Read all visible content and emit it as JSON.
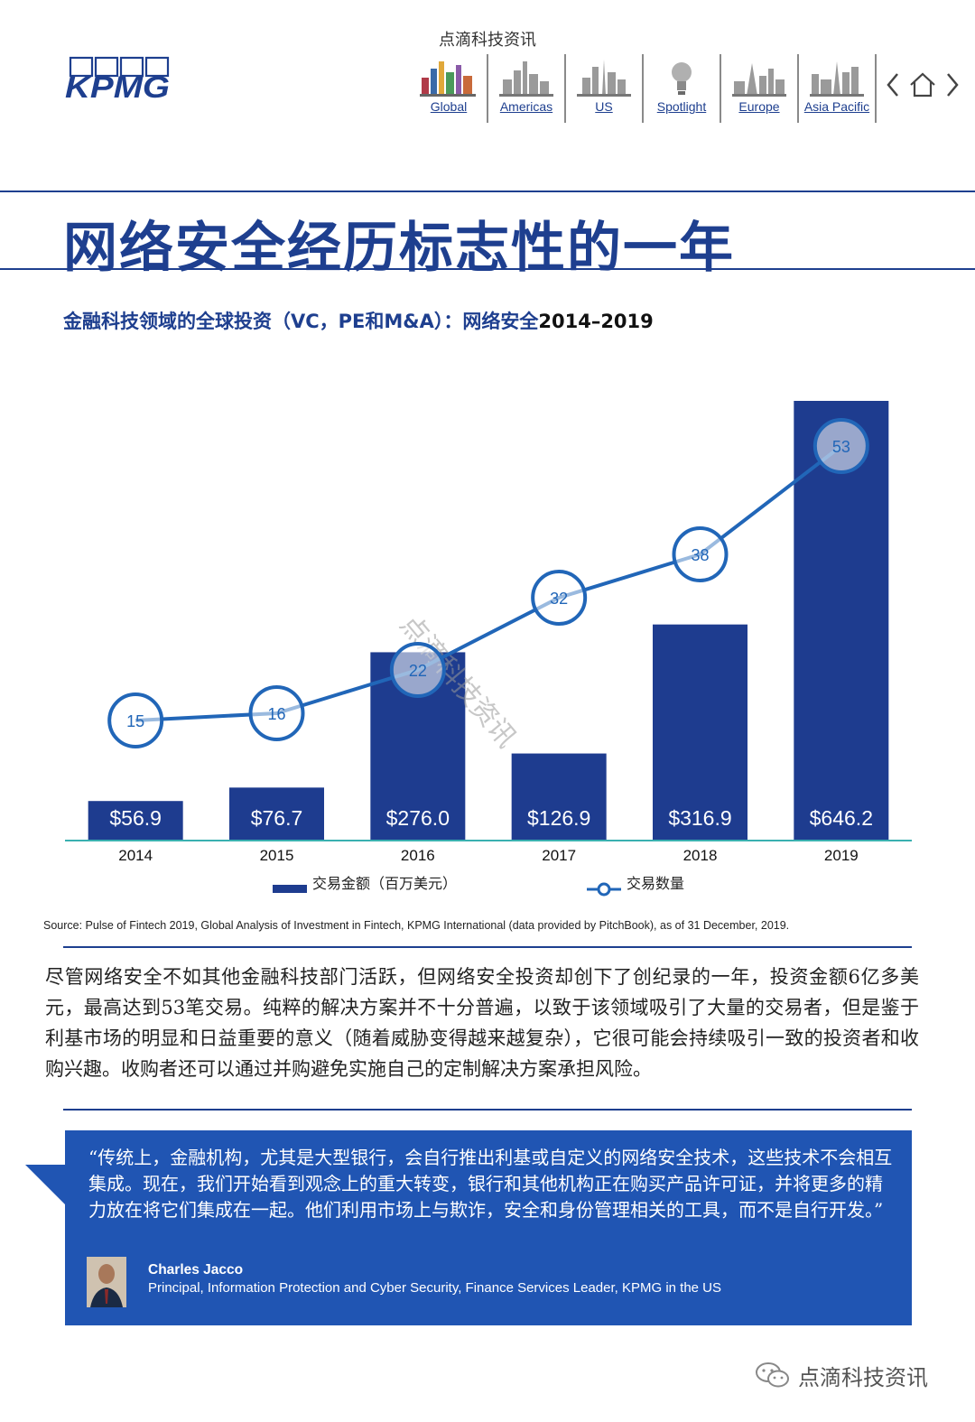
{
  "header": {
    "watermark": "点滴科技资讯",
    "logo_text": "KPMG",
    "nav": [
      {
        "label": "Global",
        "icon": "global-skyline-icon"
      },
      {
        "label": "Americas",
        "icon": "americas-skyline-icon"
      },
      {
        "label": "US",
        "icon": "us-skyline-icon"
      },
      {
        "label": "Spotlight",
        "icon": "spotlight-bulb-icon"
      },
      {
        "label": "Europe",
        "icon": "europe-skyline-icon"
      },
      {
        "label": "Asia Pacific",
        "icon": "asia-pacific-skyline-icon"
      }
    ],
    "nav_icons": [
      "chevron-left-icon",
      "home-icon",
      "chevron-right-icon"
    ]
  },
  "title": "网络安全经历标志性的一年",
  "chart_heading": {
    "main": "金融科技领域的全球投资（VC，PE和M&A）：网络安全",
    "years": "2014–2019"
  },
  "chart_data": {
    "type": "bar",
    "categories": [
      "2014",
      "2015",
      "2016",
      "2017",
      "2018",
      "2019"
    ],
    "series": [
      {
        "name": "交易金额（百万美元）",
        "type": "bar",
        "values": [
          56.9,
          76.7,
          276.0,
          126.9,
          316.9,
          646.2
        ],
        "labels": [
          "$56.9",
          "$76.7",
          "$276.0",
          "$126.9",
          "$316.9",
          "$646.2"
        ]
      },
      {
        "name": "交易数量",
        "type": "line",
        "values": [
          15,
          16,
          22,
          32,
          38,
          53
        ]
      }
    ],
    "legend_position": "bottom",
    "grid": false,
    "colors": {
      "bar": "#1e3c8f",
      "line": "#2166b8",
      "bar_label": "#ffffff",
      "baseline": "#3ab0b0"
    },
    "watermark": "点滴科技资讯"
  },
  "source": "Source: Pulse of Fintech 2019, Global Analysis of Investment in Fintech, KPMG International (data provided by PitchBook), as of 31 December, 2019.",
  "body": "尽管网络安全不如其他金融科技部门活跃，但网络安全投资却创下了创纪录的一年，投资金额6亿多美元，最高达到53笔交易。纯粹的解决方案并不十分普遍，以致于该领域吸引了大量的交易者，但是鉴于利基市场的明显和日益重要的意义（随着威胁变得越来越复杂），它很可能会持续吸引一致的投资者和收购兴趣。收购者还可以通过并购避免实施自己的定制解决方案承担风险。",
  "quote": {
    "text": "“传统上，金融机构，尤其是大型银行，会自行推出利基或自定义的网络安全技术，这些技术不会相互集成。现在，我们开始看到观念上的重大转变，银行和其他机构正在购买产品许可证，并将更多的精力放在将它们集成在一起。他们利用市场上与欺诈，安全和身份管理相关的工具，而不是自行开发。”",
    "name": "Charles Jacco",
    "role": "Principal, Information Protection and Cyber Security, Finance Services Leader, KPMG in the US",
    "box_color": "#2055b3"
  },
  "footer": {
    "brand": "点滴科技资讯",
    "icon": "wechat-icon"
  }
}
